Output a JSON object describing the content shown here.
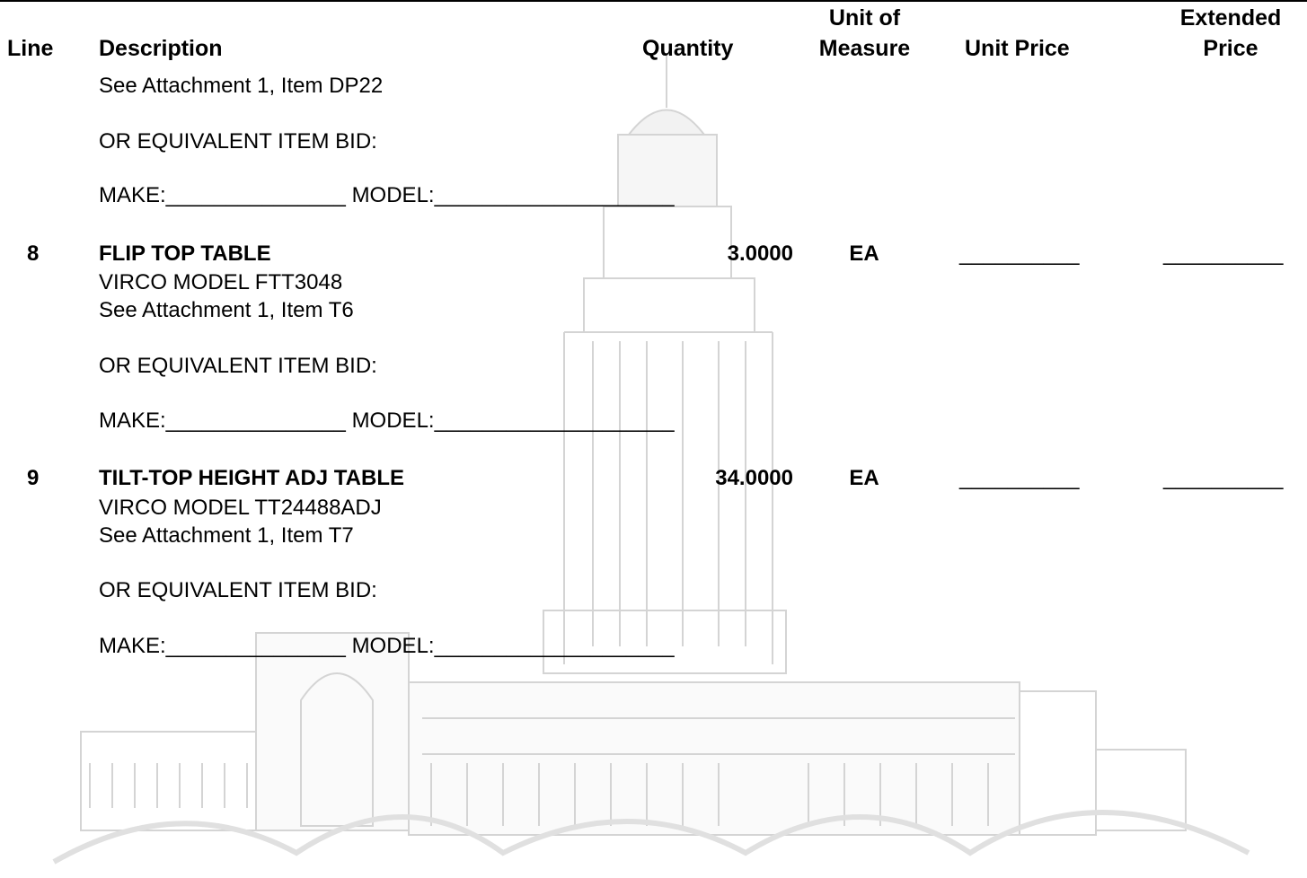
{
  "header": {
    "line": "Line",
    "description": "Description",
    "quantity": "Quantity",
    "unit_of_measure": "Unit of Measure",
    "unit_price": "Unit Price",
    "extended_price": "Extended Price"
  },
  "continuation": {
    "details": [
      "See Attachment 1, Item DP22"
    ],
    "equivalent": "OR EQUIVALENT ITEM BID:",
    "make_model": "MAKE:_______________ MODEL:____________________"
  },
  "items": [
    {
      "line": "8",
      "description": "FLIP TOP TABLE",
      "quantity": "3.0000",
      "unit_of_measure": "EA",
      "unit_price": "__________",
      "extended_price": "__________",
      "details": [
        "VIRCO MODEL FTT3048",
        "See Attachment 1, Item T6"
      ],
      "equivalent": "OR EQUIVALENT ITEM BID:",
      "make_model": "MAKE:_______________ MODEL:____________________"
    },
    {
      "line": "9",
      "description": "TILT-TOP HEIGHT ADJ TABLE",
      "quantity": "34.0000",
      "unit_of_measure": "EA",
      "unit_price": "__________",
      "extended_price": "__________",
      "details": [
        "VIRCO MODEL TT24488ADJ",
        "See Attachment 1, Item T7"
      ],
      "equivalent": "OR EQUIVALENT ITEM BID:",
      "make_model": "MAKE:_______________ MODEL:____________________"
    }
  ]
}
